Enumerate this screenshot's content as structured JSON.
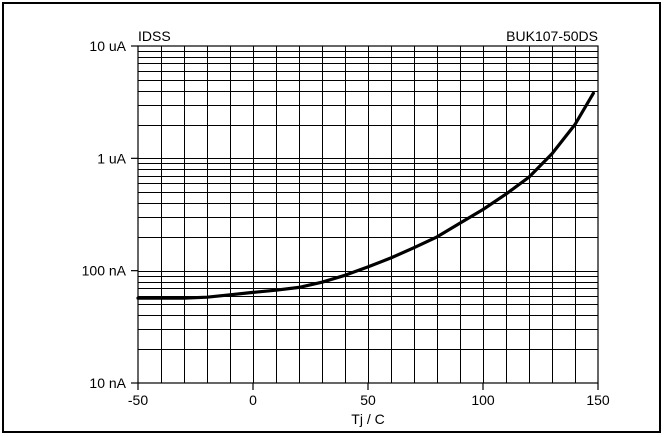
{
  "chart_data": {
    "type": "line",
    "title_left": "IDSS",
    "title_right": "BUK107-50DS",
    "xlabel": "Tj / C",
    "ylabel": "",
    "xlim": [
      -50,
      150
    ],
    "x_ticks": [
      -50,
      0,
      50,
      100,
      150
    ],
    "x_tick_labels": [
      "-50",
      "0",
      "50",
      "100",
      "150"
    ],
    "x_minor_step": 10,
    "y_scale": "log",
    "ylim": [
      1e-08,
      1e-05
    ],
    "y_ticks": [
      1e-08,
      1e-07,
      1e-06,
      1e-05
    ],
    "y_tick_labels": [
      "10 nA",
      "100 nA",
      "1 uA",
      "10 uA"
    ],
    "grid": true,
    "line_color": "#000000",
    "series": [
      {
        "x": [
          -50,
          -40,
          -30,
          -20,
          -10,
          0,
          10,
          20,
          30,
          40,
          50,
          60,
          70,
          80,
          90,
          100,
          110,
          120,
          130,
          140,
          148
        ],
        "y": [
          5.7e-08,
          5.7e-08,
          5.7e-08,
          5.8e-08,
          6.1e-08,
          6.4e-08,
          6.7e-08,
          7.1e-08,
          7.9e-08,
          9.1e-08,
          1.08e-07,
          1.3e-07,
          1.6e-07,
          2e-07,
          2.65e-07,
          3.5e-07,
          4.8e-07,
          6.8e-07,
          1.1e-06,
          2e-06,
          3.8e-06
        ]
      }
    ]
  }
}
